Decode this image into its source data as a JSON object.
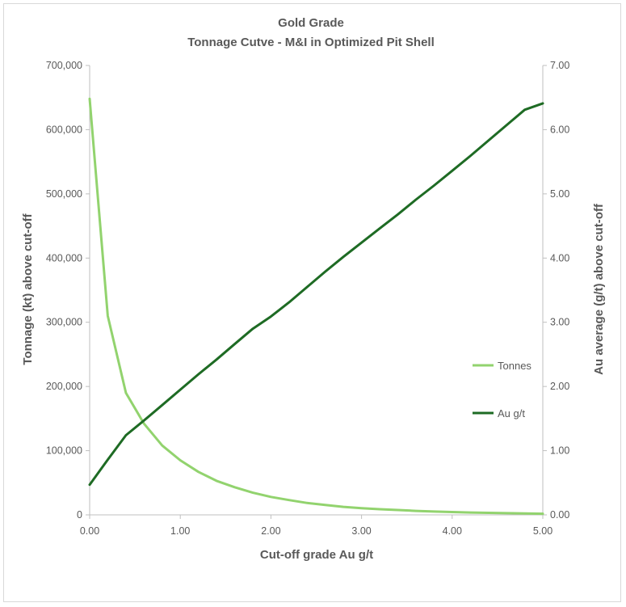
{
  "chart_data": {
    "type": "line",
    "title": "Gold Grade",
    "subtitle": "Tonnage Cutve - M&I in Optimized Pit Shell",
    "xlabel": "Cut-off grade Au g/t",
    "ylabel": "Tonnage (kt) above cut-off",
    "y2label": "Au average (g/t) above cut-off",
    "xlim": [
      0,
      5
    ],
    "ylim": [
      0,
      700000
    ],
    "y2lim": [
      0,
      7
    ],
    "x_ticks": [
      "0.00",
      "1.00",
      "2.00",
      "3.00",
      "4.00",
      "5.00"
    ],
    "y_ticks": [
      "0",
      "100,000",
      "200,000",
      "300,000",
      "400,000",
      "500,000",
      "600,000",
      "700,000"
    ],
    "y2_ticks": [
      "0.00",
      "1.00",
      "2.00",
      "3.00",
      "4.00",
      "5.00",
      "6.00",
      "7.00"
    ],
    "grid": false,
    "legend_position": "right",
    "series": [
      {
        "name": "Tonnes",
        "axis": "left",
        "color": "#92d36e",
        "x": [
          0,
          0.2,
          0.4,
          0.6,
          0.8,
          1.0,
          1.2,
          1.4,
          1.6,
          1.8,
          2.0,
          2.2,
          2.4,
          2.6,
          2.8,
          3.0,
          3.2,
          3.4,
          3.6,
          3.8,
          4.0,
          4.2,
          4.4,
          4.6,
          4.8,
          5.0
        ],
        "values": [
          648000,
          310000,
          190000,
          142000,
          108000,
          85000,
          67000,
          53000,
          43000,
          34500,
          28000,
          23000,
          18500,
          15500,
          12500,
          10500,
          8800,
          7500,
          6200,
          5200,
          4400,
          3700,
          3100,
          2600,
          2200,
          1800
        ]
      },
      {
        "name": "Au g/t",
        "axis": "right",
        "color": "#1e6b24",
        "x": [
          0,
          0.2,
          0.4,
          0.6,
          0.8,
          1.0,
          1.2,
          1.4,
          1.6,
          1.8,
          2.0,
          2.2,
          2.4,
          2.6,
          2.8,
          3.0,
          3.2,
          3.4,
          3.6,
          3.8,
          4.0,
          4.2,
          4.4,
          4.6,
          4.8,
          5.0
        ],
        "values": [
          0.47,
          0.86,
          1.24,
          1.47,
          1.71,
          1.95,
          2.19,
          2.42,
          2.66,
          2.9,
          3.09,
          3.31,
          3.55,
          3.79,
          4.02,
          4.24,
          4.46,
          4.68,
          4.91,
          5.13,
          5.36,
          5.59,
          5.83,
          6.07,
          6.31,
          6.41
        ]
      }
    ]
  }
}
